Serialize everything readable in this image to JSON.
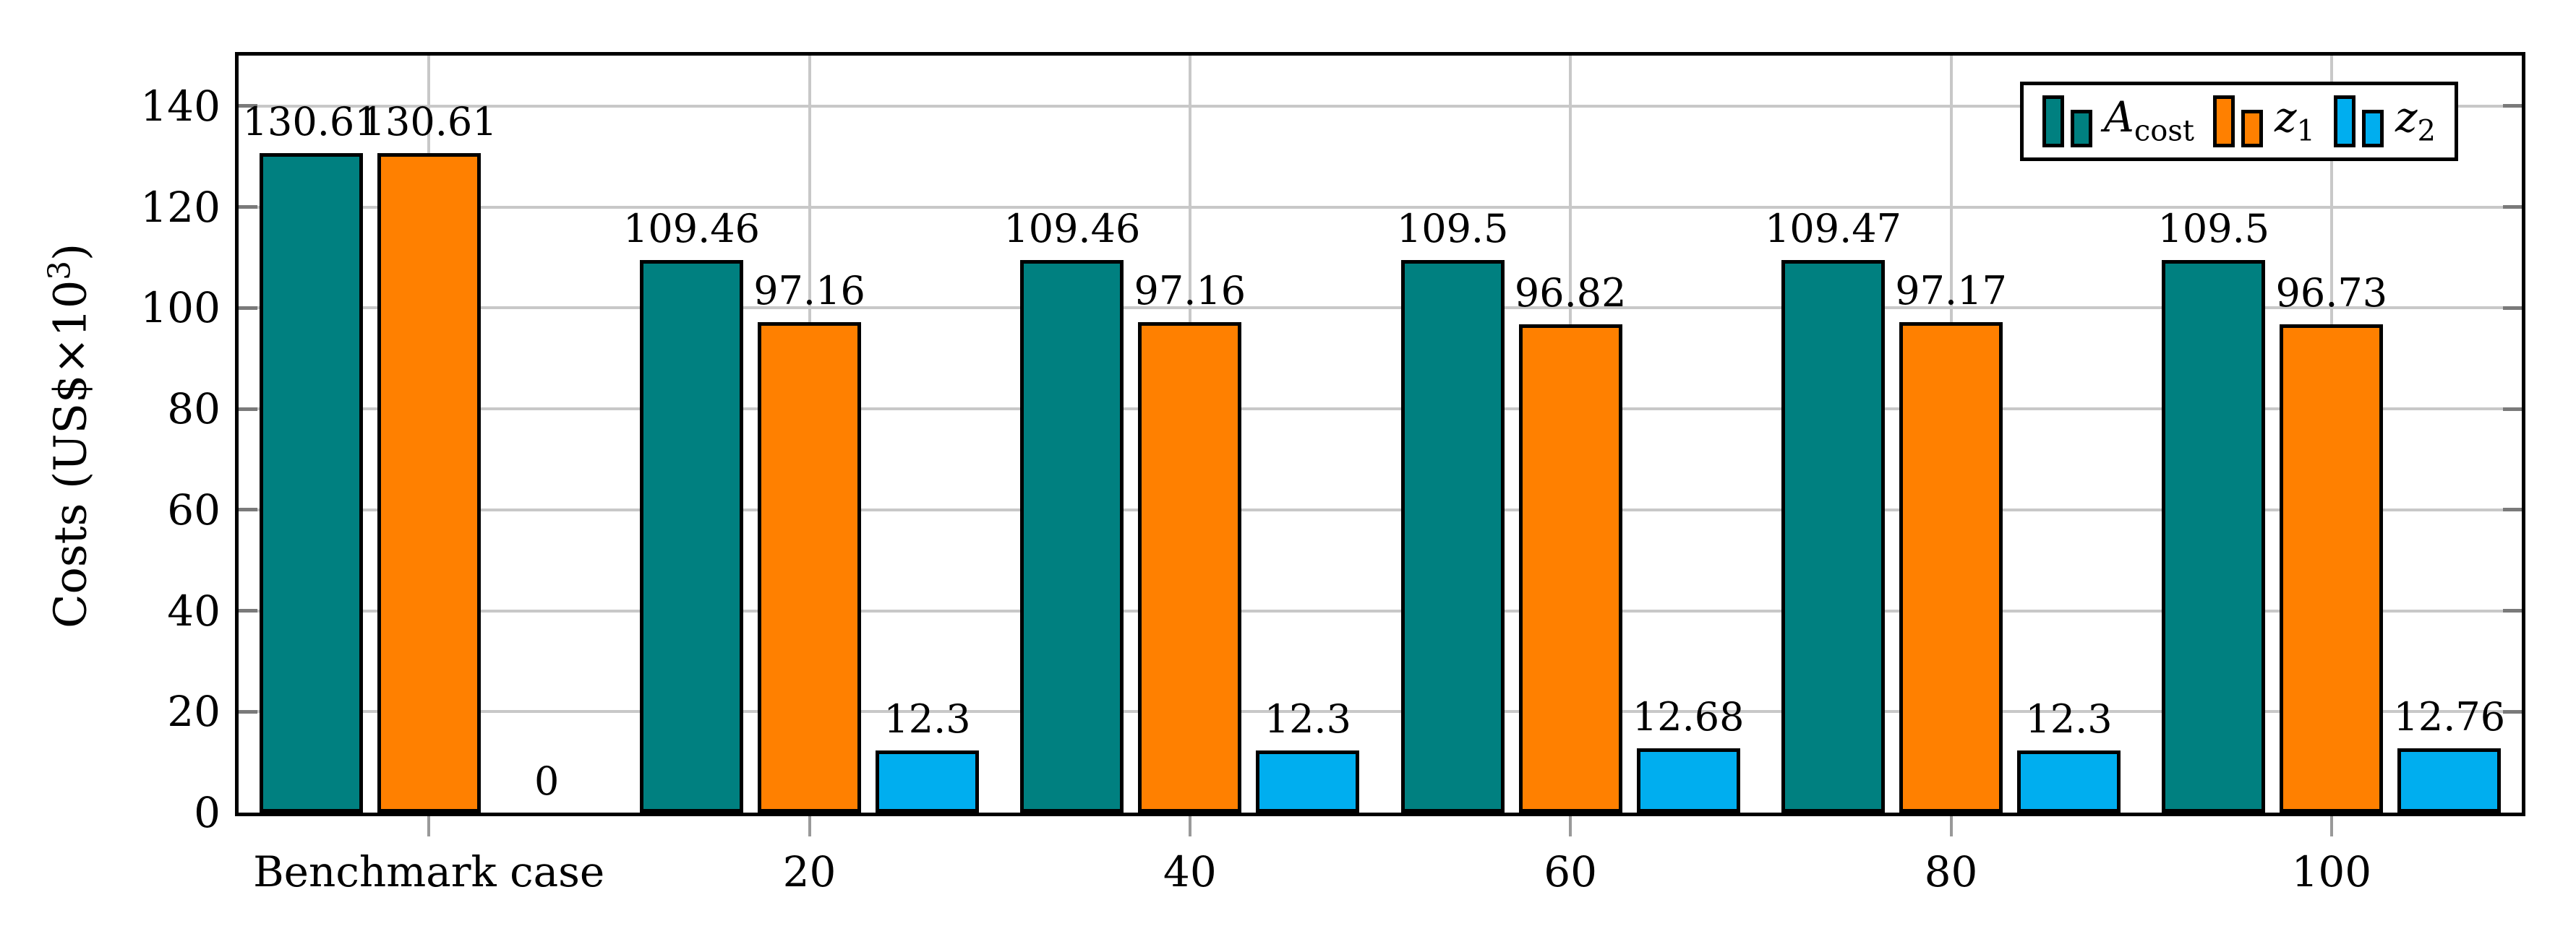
{
  "chart_data": {
    "type": "bar",
    "title": "",
    "ylabel": "Costs (US$×10³)",
    "xlabel": "",
    "categories": [
      "Benchmark case",
      "20",
      "40",
      "60",
      "80",
      "100"
    ],
    "series": [
      {
        "name": "A_cost",
        "legend_main": "A",
        "legend_sub": "cost",
        "color": "#008080",
        "values": [
          130.61,
          109.46,
          109.46,
          109.5,
          109.47,
          109.5
        ],
        "labels": [
          "130.61",
          "109.46",
          "109.46",
          "109.5",
          "109.47",
          "109.5"
        ]
      },
      {
        "name": "z_1",
        "legend_main": "z",
        "legend_sub": "1",
        "color": "#FF8000",
        "values": [
          130.61,
          97.16,
          97.16,
          96.82,
          97.17,
          96.73
        ],
        "labels": [
          "130.61",
          "97.16",
          "97.16",
          "96.82",
          "97.17",
          "96.73"
        ]
      },
      {
        "name": "z_2",
        "legend_main": "z",
        "legend_sub": "2",
        "color": "#00AEEF",
        "values": [
          0,
          12.3,
          12.3,
          12.68,
          12.3,
          12.76
        ],
        "labels": [
          "0",
          "12.3",
          "12.3",
          "12.68",
          "12.3",
          "12.76"
        ]
      }
    ],
    "ylim": [
      0,
      150
    ],
    "yticks": [
      "0",
      "20",
      "40",
      "60",
      "80",
      "100",
      "120",
      "140"
    ],
    "grid": true,
    "legend_position": "top-right",
    "colors": {
      "grid": "#c8c8c8",
      "axis_frame": "#000000",
      "bar_border": "#000000",
      "text": "#000000"
    }
  }
}
